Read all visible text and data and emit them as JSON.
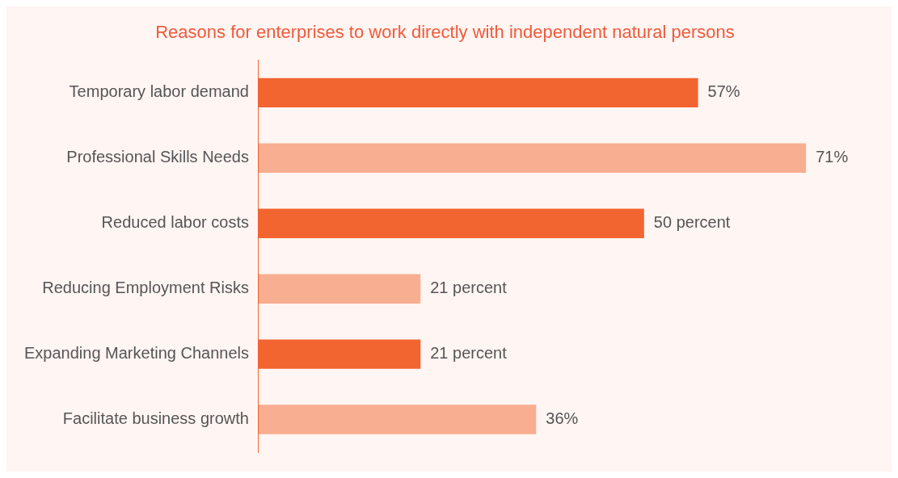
{
  "chart_data": {
    "type": "bar",
    "orientation": "horizontal",
    "title": "Reasons for enterprises to work directly with independent natural persons",
    "categories": [
      "Temporary labor demand",
      "Professional Skills Needs",
      "Reduced labor costs",
      "Reducing Employment Risks",
      "Expanding Marketing Channels",
      "Facilitate business growth"
    ],
    "values": [
      57,
      71,
      50,
      21,
      21,
      36
    ],
    "colors": [
      "#f26430",
      "#f8ae90",
      "#f26430",
      "#f8ae90",
      "#f26430",
      "#f8ae90"
    ],
    "value_labels": [
      "57%",
      "71%",
      "50 percent",
      "21 percent",
      "21 percent",
      "36%"
    ],
    "legend": false
  }
}
